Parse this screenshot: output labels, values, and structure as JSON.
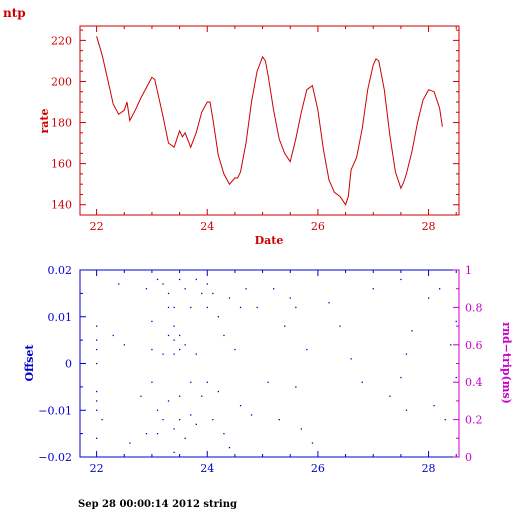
{
  "corner_title": "ntp",
  "footer": "Sep 28 00:00:14 2012 string",
  "colors": {
    "rate": "#cc0000",
    "offset": "#0000cc",
    "rtt": "#cc00cc",
    "axis_top": "#cc0000",
    "axis_bottom": "#0000cc"
  },
  "chart_data": [
    {
      "type": "line",
      "xlabel": "Date",
      "ylabel": "rate",
      "xlim": [
        21.7,
        28.55
      ],
      "ylim": [
        135,
        227
      ],
      "xticks": [
        22,
        24,
        26,
        28
      ],
      "yticks": [
        140,
        160,
        180,
        200,
        220
      ],
      "series": [
        {
          "x": [
            22.0,
            22.1,
            22.2,
            22.3,
            22.4,
            22.5,
            22.55,
            22.6,
            22.7,
            22.8,
            22.9,
            23.0,
            23.05,
            23.1,
            23.2,
            23.3,
            23.4,
            23.5,
            23.55,
            23.6,
            23.7,
            23.8,
            23.9,
            24.0,
            24.05,
            24.1,
            24.2,
            24.3,
            24.4,
            24.5,
            24.55,
            24.6,
            24.7,
            24.8,
            24.9,
            25.0,
            25.05,
            25.1,
            25.2,
            25.3,
            25.4,
            25.5,
            25.6,
            25.7,
            25.8,
            25.9,
            26.0,
            26.1,
            26.2,
            26.3,
            26.4,
            26.5,
            26.55,
            26.6,
            26.7,
            26.8,
            26.9,
            27.0,
            27.05,
            27.1,
            27.2,
            27.3,
            27.4,
            27.5,
            27.55,
            27.6,
            27.7,
            27.8,
            27.9,
            28.0,
            28.1,
            28.2,
            28.25
          ],
          "y": [
            222,
            213,
            201,
            189,
            184,
            186,
            190,
            181,
            186,
            192,
            197,
            202,
            201,
            195,
            183,
            170,
            168,
            176,
            173,
            175,
            168,
            175,
            185,
            190,
            190,
            182,
            164,
            155,
            150,
            153,
            153,
            156,
            170,
            190,
            205,
            212,
            210,
            203,
            186,
            172,
            165,
            161,
            172,
            185,
            196,
            198,
            186,
            167,
            152,
            146,
            144,
            140,
            144,
            157,
            163,
            177,
            196,
            208,
            211,
            210,
            196,
            174,
            156,
            148,
            151,
            155,
            166,
            180,
            191,
            196,
            195,
            187,
            178
          ]
        }
      ]
    },
    {
      "type": "scatter",
      "ylabel": "Offset",
      "y2label": "rnd−trip(ms)",
      "xlim": [
        21.7,
        28.55
      ],
      "ylim": [
        -0.02,
        0.02
      ],
      "y2lim": [
        0,
        1
      ],
      "xticks": [
        22,
        24,
        26,
        28
      ],
      "yticks": [
        -0.02,
        -0.01,
        0,
        0.01,
        0.02
      ],
      "ytick_labels": [
        "−0.02",
        "−0.01",
        "0",
        "0.01",
        "0.02"
      ],
      "y2ticks": [
        0,
        0.2,
        0.4,
        0.6,
        0.8,
        1
      ],
      "y2tick_labels": [
        "0",
        "0.2",
        "0.4",
        "0.6",
        "0.8",
        "1"
      ],
      "series": [
        {
          "x": [
            22.0,
            22.0,
            22.0,
            22.0,
            22.0,
            22.0,
            22.0,
            22.0,
            22.1,
            22.3,
            22.4,
            22.5,
            22.6,
            22.8,
            22.9,
            22.9,
            23.0,
            23.0,
            23.0,
            23.1,
            23.1,
            23.1,
            23.2,
            23.2,
            23.2,
            23.3,
            23.3,
            23.3,
            23.3,
            23.4,
            23.4,
            23.4,
            23.4,
            23.4,
            23.4,
            23.5,
            23.5,
            23.5,
            23.5,
            23.5,
            23.6,
            23.6,
            23.6,
            23.7,
            23.7,
            23.7,
            23.8,
            23.8,
            23.8,
            23.9,
            23.9,
            24.0,
            24.0,
            24.0,
            24.1,
            24.1,
            24.2,
            24.2,
            24.3,
            24.3,
            24.4,
            24.4,
            24.5,
            24.6,
            24.6,
            24.7,
            24.8,
            24.9,
            25.1,
            25.2,
            25.3,
            25.4,
            25.5,
            25.6,
            25.6,
            25.7,
            25.8,
            25.9,
            26.2,
            26.4,
            26.6,
            26.8,
            27.0,
            27.3,
            27.5,
            27.5,
            27.6,
            27.6,
            27.7,
            28.0,
            28.1,
            28.2,
            28.3,
            28.4,
            28.5,
            28.5
          ],
          "y": [
            -0.016,
            -0.01,
            -0.008,
            -0.006,
            0.0,
            0.003,
            0.005,
            0.008,
            -0.012,
            0.006,
            0.017,
            0.004,
            -0.017,
            -0.007,
            0.016,
            -0.015,
            0.003,
            0.009,
            -0.004,
            0.018,
            -0.015,
            -0.01,
            0.017,
            -0.012,
            0.002,
            0.006,
            0.012,
            -0.008,
            0.015,
            0.002,
            0.012,
            0.008,
            -0.014,
            0.005,
            -0.019,
            0.018,
            0.003,
            -0.012,
            0.006,
            -0.007,
            0.016,
            0.004,
            -0.016,
            0.012,
            -0.004,
            -0.011,
            0.018,
            0.002,
            -0.013,
            0.015,
            -0.007,
            0.012,
            -0.004,
            0.017,
            0.015,
            -0.012,
            0.01,
            -0.006,
            0.006,
            -0.015,
            0.014,
            -0.018,
            0.003,
            0.012,
            -0.009,
            0.016,
            -0.011,
            0.012,
            -0.004,
            0.016,
            -0.012,
            0.008,
            0.014,
            -0.005,
            0.012,
            -0.014,
            0.003,
            -0.017,
            0.013,
            0.008,
            0.001,
            -0.004,
            0.016,
            -0.007,
            0.018,
            -0.003,
            0.002,
            -0.01,
            0.007,
            0.014,
            -0.009,
            0.016,
            -0.012,
            0.004,
            0.009,
            -0.003
          ]
        }
      ]
    }
  ]
}
